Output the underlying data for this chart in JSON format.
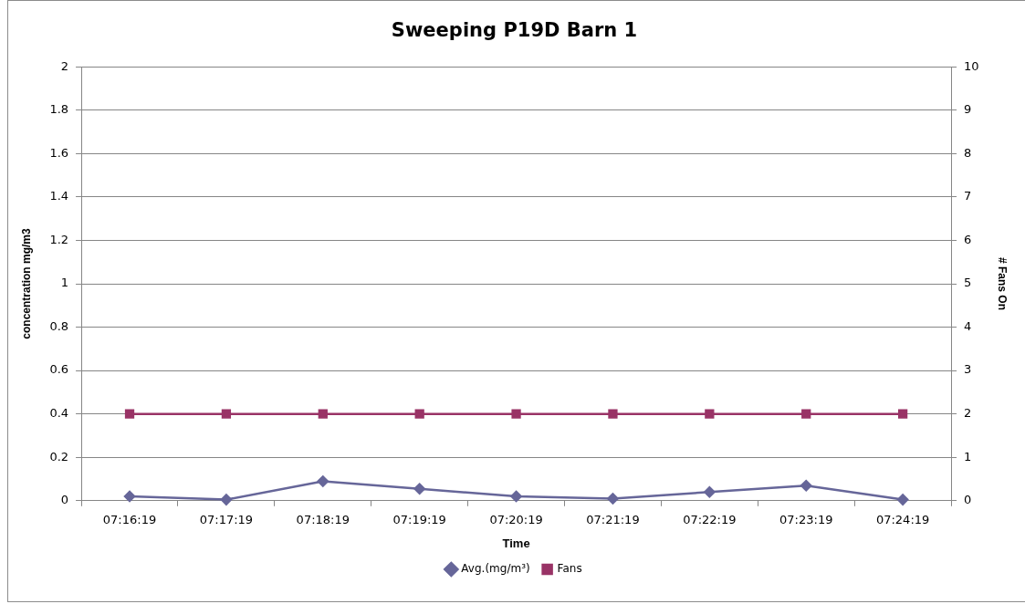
{
  "chart_data": {
    "type": "line",
    "title": "Sweeping P19D Barn 1",
    "xlabel": "Time",
    "ylabel": "concentration mg/m3",
    "y2label": "# Fans On",
    "categories": [
      "07:16:19",
      "07:17:19",
      "07:18:19",
      "07:19:19",
      "07:20:19",
      "07:21:19",
      "07:22:19",
      "07:23:19",
      "07:24:19"
    ],
    "series": [
      {
        "name": "Avg.(mg/m³)",
        "color": "#666699",
        "marker": "diamond",
        "values": [
          0.02,
          0.005,
          0.09,
          0.055,
          0.02,
          0.01,
          0.04,
          0.07,
          0.005
        ]
      },
      {
        "name": "Fans",
        "color": "#993366",
        "marker": "square",
        "axis": "y2",
        "values": [
          2,
          2,
          2,
          2,
          2,
          2,
          2,
          2,
          2
        ]
      }
    ],
    "ylim": [
      0,
      2
    ],
    "yticks": [
      0,
      0.2,
      0.4,
      0.6,
      0.8,
      1,
      1.2,
      1.4,
      1.6,
      1.8,
      2
    ],
    "y2lim": [
      0,
      10
    ],
    "y2ticks": [
      0,
      1,
      2,
      3,
      4,
      5,
      6,
      7,
      8,
      9,
      10
    ],
    "grid": "y",
    "legend": "bottom",
    "line_style": "solid"
  }
}
